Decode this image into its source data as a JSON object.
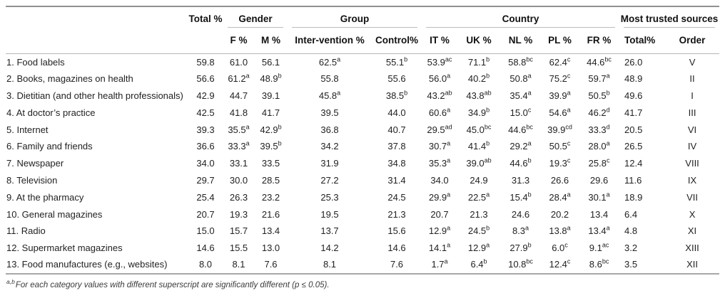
{
  "table": {
    "column_groups": [
      {
        "label": "",
        "span": 1,
        "underline": false
      },
      {
        "label": "Total %",
        "span": 1,
        "underline": false
      },
      {
        "label": "Gender",
        "span": 2,
        "underline": true
      },
      {
        "label": "Group",
        "span": 2,
        "underline": true
      },
      {
        "label": "Country",
        "span": 5,
        "underline": true
      },
      {
        "label": "Most trusted sources",
        "span": 2,
        "underline": true
      }
    ],
    "columns": [
      "",
      "",
      "F %",
      "M %",
      "Inter-vention %",
      "Control%",
      "IT %",
      "UK %",
      "NL %",
      "PL %",
      "FR %",
      "Total%",
      "Order"
    ],
    "rows": [
      {
        "label": "1. Food labels",
        "cells": [
          {
            "v": "59.8"
          },
          {
            "v": "61.0"
          },
          {
            "v": "56.1"
          },
          {
            "v": "62.5",
            "s": "a"
          },
          {
            "v": "55.1",
            "s": "b"
          },
          {
            "v": "53.9",
            "s": "ac"
          },
          {
            "v": "71.1",
            "s": "b"
          },
          {
            "v": "58.8",
            "s": "bc"
          },
          {
            "v": "62.4",
            "s": "c"
          },
          {
            "v": "44.6",
            "s": "bc"
          },
          {
            "v": "26.0"
          },
          {
            "v": "V"
          }
        ]
      },
      {
        "label": "2. Books, magazines on health",
        "cells": [
          {
            "v": "56.6"
          },
          {
            "v": "61.2",
            "s": "a"
          },
          {
            "v": "48.9",
            "s": "b"
          },
          {
            "v": "55.8"
          },
          {
            "v": "55.6"
          },
          {
            "v": "56.0",
            "s": "a"
          },
          {
            "v": "40.2",
            "s": "b"
          },
          {
            "v": "50.8",
            "s": "a"
          },
          {
            "v": "75.2",
            "s": "c"
          },
          {
            "v": "59.7",
            "s": "a"
          },
          {
            "v": "48.9"
          },
          {
            "v": "II"
          }
        ]
      },
      {
        "label": "3. Dietitian (and other health professionals)",
        "cells": [
          {
            "v": "42.9"
          },
          {
            "v": "44.7"
          },
          {
            "v": "39.1"
          },
          {
            "v": "45.8",
            "s": "a"
          },
          {
            "v": "38.5",
            "s": "b"
          },
          {
            "v": "43.2",
            "s": "ab"
          },
          {
            "v": "43.8",
            "s": "ab"
          },
          {
            "v": "35.4",
            "s": "a"
          },
          {
            "v": "39.9",
            "s": "a"
          },
          {
            "v": "50.5",
            "s": "b"
          },
          {
            "v": "49.6"
          },
          {
            "v": "I"
          }
        ]
      },
      {
        "label": "4. At doctor’s practice",
        "cells": [
          {
            "v": "42.5"
          },
          {
            "v": "41.8"
          },
          {
            "v": "41.7"
          },
          {
            "v": "39.5"
          },
          {
            "v": "44.0"
          },
          {
            "v": "60.6",
            "s": "a"
          },
          {
            "v": "34.9",
            "s": "b"
          },
          {
            "v": "15.0",
            "s": "c"
          },
          {
            "v": "54.6",
            "s": "a"
          },
          {
            "v": "46.2",
            "s": "d"
          },
          {
            "v": "41.7"
          },
          {
            "v": "III"
          }
        ]
      },
      {
        "label": "5. Internet",
        "cells": [
          {
            "v": "39.3"
          },
          {
            "v": "35.5",
            "s": "a"
          },
          {
            "v": "42.9",
            "s": "b"
          },
          {
            "v": "36.8"
          },
          {
            "v": "40.7"
          },
          {
            "v": "29.5",
            "s": "ad"
          },
          {
            "v": "45.0",
            "s": "bc"
          },
          {
            "v": "44.6",
            "s": "bc"
          },
          {
            "v": "39.9",
            "s": "cd"
          },
          {
            "v": "33.3",
            "s": "d"
          },
          {
            "v": "20.5"
          },
          {
            "v": "VI"
          }
        ]
      },
      {
        "label": "6. Family and friends",
        "cells": [
          {
            "v": "36.6"
          },
          {
            "v": "33.3",
            "s": "a"
          },
          {
            "v": "39.5",
            "s": "b"
          },
          {
            "v": "34.2"
          },
          {
            "v": "37.8"
          },
          {
            "v": "30.7",
            "s": "a"
          },
          {
            "v": "41.4",
            "s": "b"
          },
          {
            "v": "29.2",
            "s": "a"
          },
          {
            "v": "50.5",
            "s": "c"
          },
          {
            "v": "28.0",
            "s": "a"
          },
          {
            "v": "26.5"
          },
          {
            "v": "IV"
          }
        ]
      },
      {
        "label": "7. Newspaper",
        "cells": [
          {
            "v": "34.0"
          },
          {
            "v": "33.1"
          },
          {
            "v": "33.5"
          },
          {
            "v": "31.9"
          },
          {
            "v": "34.8"
          },
          {
            "v": "35.3",
            "s": "a"
          },
          {
            "v": "39.0",
            "s": "ab"
          },
          {
            "v": "44.6",
            "s": "b"
          },
          {
            "v": "19.3",
            "s": "c"
          },
          {
            "v": "25.8",
            "s": "c"
          },
          {
            "v": "12.4"
          },
          {
            "v": "VIII"
          }
        ]
      },
      {
        "label": "8. Television",
        "cells": [
          {
            "v": "29.7"
          },
          {
            "v": "30.0"
          },
          {
            "v": "28.5"
          },
          {
            "v": "27.2"
          },
          {
            "v": "31.4"
          },
          {
            "v": "34.0"
          },
          {
            "v": "24.9"
          },
          {
            "v": "31.3"
          },
          {
            "v": "26.6"
          },
          {
            "v": "29.6"
          },
          {
            "v": "11.6"
          },
          {
            "v": "IX"
          }
        ]
      },
      {
        "label": "9. At the pharmacy",
        "cells": [
          {
            "v": "25.4"
          },
          {
            "v": "26.3"
          },
          {
            "v": "23.2"
          },
          {
            "v": "25.3"
          },
          {
            "v": "24.5"
          },
          {
            "v": "29.9",
            "s": "a"
          },
          {
            "v": "22.5",
            "s": "a"
          },
          {
            "v": "15.4",
            "s": "b"
          },
          {
            "v": "28.4",
            "s": "a"
          },
          {
            "v": "30.1",
            "s": "a"
          },
          {
            "v": "18.9"
          },
          {
            "v": "VII"
          }
        ]
      },
      {
        "label": "10. General magazines",
        "cells": [
          {
            "v": "20.7"
          },
          {
            "v": "19.3"
          },
          {
            "v": "21.6"
          },
          {
            "v": "19.5"
          },
          {
            "v": "21.3"
          },
          {
            "v": "20.7"
          },
          {
            "v": "21.3"
          },
          {
            "v": "24.6"
          },
          {
            "v": "20.2"
          },
          {
            "v": "13.4"
          },
          {
            "v": "6.4"
          },
          {
            "v": "X"
          }
        ]
      },
      {
        "label": "11. Radio",
        "cells": [
          {
            "v": "15.0"
          },
          {
            "v": "15.7"
          },
          {
            "v": "13.4"
          },
          {
            "v": "13.7"
          },
          {
            "v": "15.6"
          },
          {
            "v": "12.9",
            "s": "a"
          },
          {
            "v": "24.5",
            "s": "b"
          },
          {
            "v": "8.3",
            "s": "a"
          },
          {
            "v": "13.8",
            "s": "a"
          },
          {
            "v": "13.4",
            "s": "a"
          },
          {
            "v": "4.8"
          },
          {
            "v": "XI"
          }
        ]
      },
      {
        "label": "12. Supermarket magazines",
        "cells": [
          {
            "v": "14.6"
          },
          {
            "v": "15.5"
          },
          {
            "v": "13.0"
          },
          {
            "v": "14.2"
          },
          {
            "v": "14.6"
          },
          {
            "v": "14.1",
            "s": "a"
          },
          {
            "v": "12.9",
            "s": "a"
          },
          {
            "v": "27.9",
            "s": "b"
          },
          {
            "v": "6.0",
            "s": "c"
          },
          {
            "v": "9.1",
            "s": "ac"
          },
          {
            "v": "3.2"
          },
          {
            "v": "XIII"
          }
        ]
      },
      {
        "label": "13. Food manufactures (e.g., websites)",
        "cells": [
          {
            "v": "8.0"
          },
          {
            "v": "8.1"
          },
          {
            "v": "7.6"
          },
          {
            "v": "8.1"
          },
          {
            "v": "7.6"
          },
          {
            "v": "1.7",
            "s": "a"
          },
          {
            "v": "6.4",
            "s": "b"
          },
          {
            "v": "10.8",
            "s": "bc"
          },
          {
            "v": "12.4",
            "s": "c"
          },
          {
            "v": "8.6",
            "s": "bc"
          },
          {
            "v": "3.5"
          },
          {
            "v": "XII"
          }
        ]
      }
    ]
  },
  "footnote": {
    "sup": "a,b",
    "text": "For each category values with different superscript are significantly different (p ≤ 0.05)."
  }
}
